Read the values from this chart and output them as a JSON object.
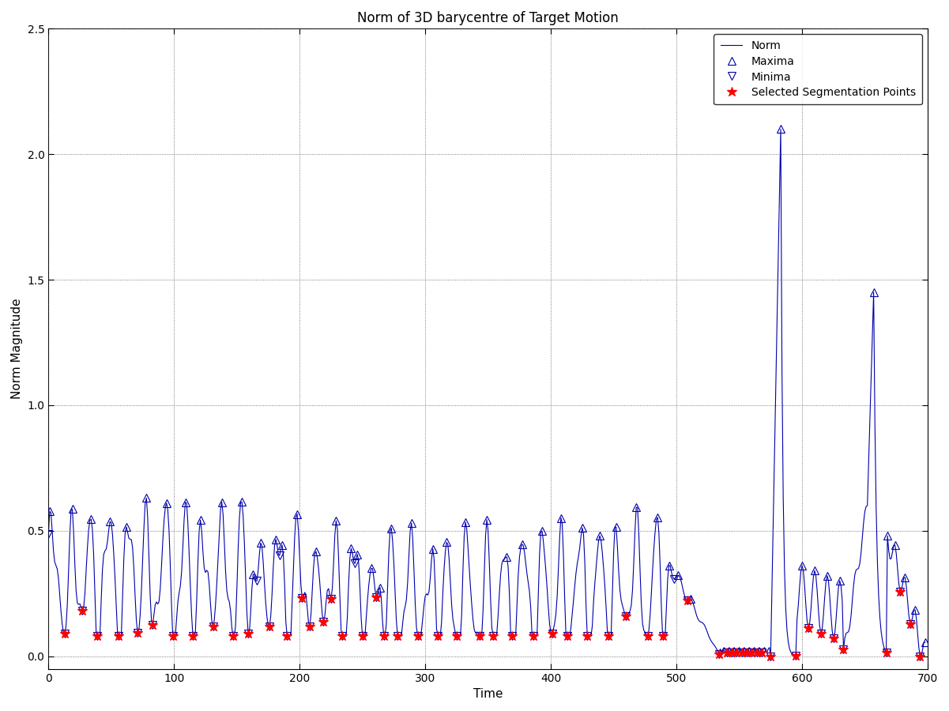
{
  "title": "Norm of 3D barycentre of Target Motion",
  "xlabel": "Time",
  "ylabel": "Norm Magnitude",
  "xlim": [
    0,
    700
  ],
  "ylim": [
    -0.05,
    2.5
  ],
  "yticks": [
    0,
    0.5,
    1.0,
    1.5,
    2.0,
    2.5
  ],
  "xticks": [
    0,
    100,
    200,
    300,
    400,
    500,
    600,
    700
  ],
  "line_color": "#0000AA",
  "maxima_color": "#0000AA",
  "minima_color": "#0000AA",
  "seg_color": "#FF0000",
  "background_color": "#FFFFFF",
  "legend_entries": [
    "Norm",
    "Maxima",
    "Minima",
    "Selected Segmentation Points"
  ],
  "marker_size": 7,
  "linewidth": 0.8,
  "seg_marker_size": 9
}
